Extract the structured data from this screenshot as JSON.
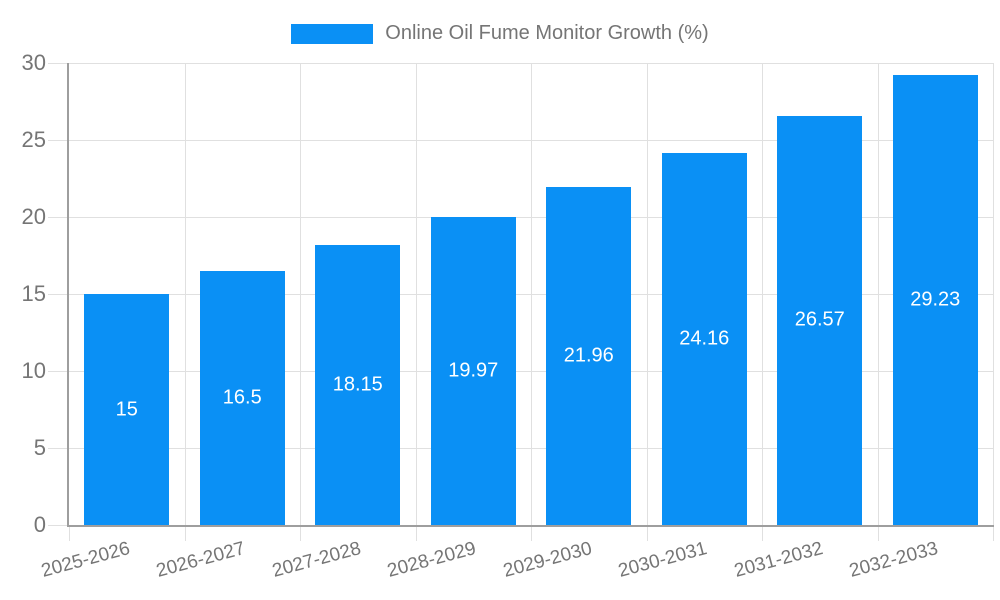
{
  "chart_data": {
    "type": "bar",
    "title": "Online Oil Fume Monitor Growth (%)",
    "categories": [
      "2025-2026",
      "2026-2027",
      "2027-2028",
      "2028-2029",
      "2029-2030",
      "2030-2031",
      "2031-2032",
      "2032-2033"
    ],
    "values": [
      15,
      16.5,
      18.15,
      19.97,
      21.96,
      24.16,
      26.57,
      29.23
    ],
    "values_display": [
      "15",
      "16.5",
      "18.15",
      "19.97",
      "21.96",
      "24.16",
      "26.57",
      "29.23"
    ],
    "xlabel": "",
    "ylabel": "",
    "ylim": [
      0,
      30
    ],
    "y_ticks": [
      0,
      5,
      10,
      15,
      20,
      25,
      30
    ],
    "grid": true,
    "legend_position": "top",
    "x_label_rotation_deg": -15,
    "colors": {
      "bar": "#0a90f5",
      "text": "#757575",
      "grid": "#e0e0e0",
      "axis": "#9e9e9e",
      "value_label": "#ffffff"
    }
  }
}
